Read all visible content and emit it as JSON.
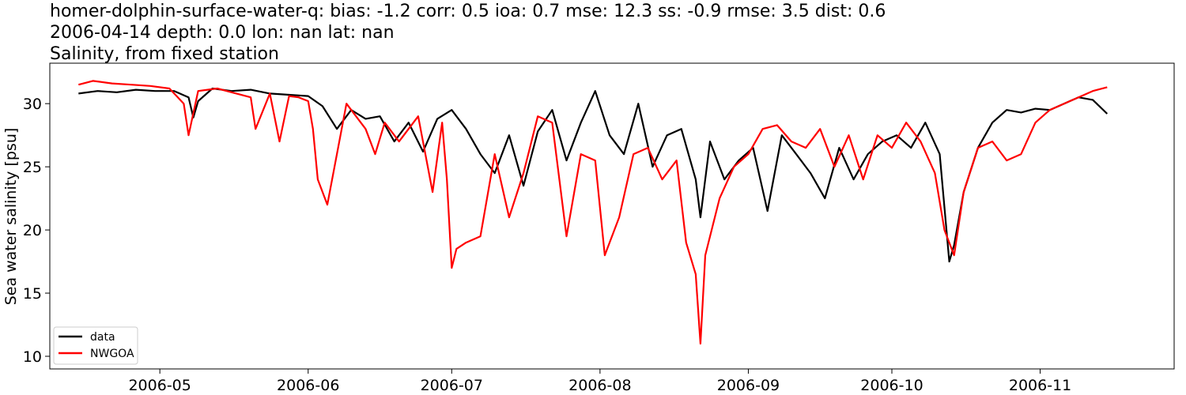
{
  "figure": {
    "title_lines": [
      "homer-dolphin-surface-water-q: bias: -1.2  corr: 0.5  ioa: 0.7  mse: 12.3  ss: -0.9  rmse: 3.5  dist: 0.6",
      "2006-04-14 depth: 0.0 lon: nan lat: nan",
      "Salinity, from fixed station"
    ]
  },
  "chart_data": {
    "type": "line",
    "title": "homer-dolphin-surface-water-q: bias: -1.2  corr: 0.5  ioa: 0.7  mse: 12.3  ss: -0.9  rmse: 3.5  dist: 0.6",
    "subtitle": "2006-04-14 depth: 0.0 lon: nan lat: nan / Salinity, from fixed station",
    "xlabel": "",
    "ylabel": "Sea water salinity [psu]",
    "x_is_date": true,
    "xlim": [
      "2006-04-08",
      "2006-11-29"
    ],
    "ylim": [
      9.0,
      33.2
    ],
    "xticks": [
      "2006-05",
      "2006-06",
      "2006-07",
      "2006-08",
      "2006-09",
      "2006-10",
      "2006-11"
    ],
    "xtick_dates": [
      "2006-05-01",
      "2006-06-01",
      "2006-07-01",
      "2006-08-01",
      "2006-09-01",
      "2006-10-01",
      "2006-11-01"
    ],
    "yticks": [
      10,
      15,
      20,
      25,
      30
    ],
    "grid": false,
    "legend_position": "lower-left",
    "series": [
      {
        "name": "data",
        "color": "#000000",
        "x": [
          "2006-04-14",
          "2006-04-18",
          "2006-04-22",
          "2006-04-26",
          "2006-04-30",
          "2006-05-04",
          "2006-05-07",
          "2006-05-08",
          "2006-05-09",
          "2006-05-12",
          "2006-05-16",
          "2006-05-20",
          "2006-05-24",
          "2006-05-28",
          "2006-06-01",
          "2006-06-04",
          "2006-06-07",
          "2006-06-10",
          "2006-06-13",
          "2006-06-16",
          "2006-06-19",
          "2006-06-22",
          "2006-06-25",
          "2006-06-28",
          "2006-07-01",
          "2006-07-04",
          "2006-07-07",
          "2006-07-10",
          "2006-07-13",
          "2006-07-16",
          "2006-07-19",
          "2006-07-22",
          "2006-07-25",
          "2006-07-28",
          "2006-07-31",
          "2006-08-03",
          "2006-08-06",
          "2006-08-09",
          "2006-08-12",
          "2006-08-15",
          "2006-08-18",
          "2006-08-21",
          "2006-08-22",
          "2006-08-24",
          "2006-08-27",
          "2006-08-30",
          "2006-09-02",
          "2006-09-05",
          "2006-09-08",
          "2006-09-11",
          "2006-09-14",
          "2006-09-17",
          "2006-09-20",
          "2006-09-23",
          "2006-09-26",
          "2006-09-29",
          "2006-10-02",
          "2006-10-05",
          "2006-10-08",
          "2006-10-11",
          "2006-10-13",
          "2006-10-14",
          "2006-10-16",
          "2006-10-19",
          "2006-10-22",
          "2006-10-25",
          "2006-10-28",
          "2006-10-31",
          "2006-11-03",
          "2006-11-06",
          "2006-11-09",
          "2006-11-12",
          "2006-11-15"
        ],
        "values": [
          30.8,
          31.0,
          30.9,
          31.1,
          31.0,
          31.0,
          30.5,
          28.9,
          30.2,
          31.2,
          31.0,
          31.1,
          30.8,
          30.7,
          30.6,
          29.8,
          28.0,
          29.5,
          28.8,
          29.0,
          27.0,
          28.5,
          26.2,
          28.8,
          29.5,
          28.0,
          26.0,
          24.5,
          27.5,
          23.5,
          27.8,
          29.5,
          25.5,
          28.5,
          31.0,
          27.5,
          26.0,
          30.0,
          25.0,
          27.5,
          28.0,
          24.0,
          21.0,
          27.0,
          24.0,
          25.5,
          26.5,
          21.5,
          27.5,
          26.0,
          24.5,
          22.5,
          26.5,
          24.0,
          26.0,
          27.0,
          27.5,
          26.5,
          28.5,
          26.0,
          17.5,
          18.8,
          23.0,
          26.5,
          28.5,
          29.5,
          29.3,
          29.6,
          29.5,
          30.0,
          30.5,
          30.3,
          29.2
        ]
      },
      {
        "name": "NWGOA",
        "color": "#ff0000",
        "x": [
          "2006-04-14",
          "2006-04-17",
          "2006-04-21",
          "2006-04-25",
          "2006-04-29",
          "2006-05-03",
          "2006-05-06",
          "2006-05-07",
          "2006-05-09",
          "2006-05-13",
          "2006-05-17",
          "2006-05-20",
          "2006-05-21",
          "2006-05-24",
          "2006-05-26",
          "2006-05-28",
          "2006-05-30",
          "2006-06-01",
          "2006-06-02",
          "2006-06-03",
          "2006-06-05",
          "2006-06-09",
          "2006-06-13",
          "2006-06-15",
          "2006-06-17",
          "2006-06-20",
          "2006-06-24",
          "2006-06-27",
          "2006-06-29",
          "2006-06-30",
          "2006-07-01",
          "2006-07-02",
          "2006-07-04",
          "2006-07-07",
          "2006-07-10",
          "2006-07-13",
          "2006-07-16",
          "2006-07-19",
          "2006-07-22",
          "2006-07-25",
          "2006-07-28",
          "2006-07-31",
          "2006-08-02",
          "2006-08-05",
          "2006-08-08",
          "2006-08-11",
          "2006-08-14",
          "2006-08-17",
          "2006-08-19",
          "2006-08-21",
          "2006-08-22",
          "2006-08-23",
          "2006-08-26",
          "2006-08-29",
          "2006-09-01",
          "2006-09-04",
          "2006-09-07",
          "2006-09-10",
          "2006-09-13",
          "2006-09-16",
          "2006-09-19",
          "2006-09-22",
          "2006-09-25",
          "2006-09-28",
          "2006-10-01",
          "2006-10-04",
          "2006-10-07",
          "2006-10-10",
          "2006-10-12",
          "2006-10-14",
          "2006-10-16",
          "2006-10-19",
          "2006-10-22",
          "2006-10-25",
          "2006-10-28",
          "2006-10-31",
          "2006-11-03",
          "2006-11-06",
          "2006-11-09",
          "2006-11-12",
          "2006-11-15"
        ],
        "values": [
          31.5,
          31.8,
          31.6,
          31.5,
          31.4,
          31.2,
          30.0,
          27.5,
          31.0,
          31.2,
          30.8,
          30.5,
          28.0,
          30.8,
          27.0,
          30.6,
          30.5,
          30.2,
          28.0,
          24.0,
          22.0,
          30.0,
          28.0,
          26.0,
          28.5,
          27.0,
          29.0,
          23.0,
          28.5,
          24.0,
          17.0,
          18.5,
          19.0,
          19.5,
          26.0,
          21.0,
          24.5,
          29.0,
          28.5,
          19.5,
          26.0,
          25.5,
          18.0,
          21.0,
          26.0,
          26.5,
          24.0,
          25.5,
          19.0,
          16.5,
          11.0,
          18.0,
          22.5,
          25.0,
          26.0,
          28.0,
          28.3,
          27.0,
          26.5,
          28.0,
          25.0,
          27.5,
          24.0,
          27.5,
          26.5,
          28.5,
          27.0,
          24.5,
          20.0,
          18.0,
          23.0,
          26.5,
          27.0,
          25.5,
          26.0,
          28.5,
          29.5,
          30.0,
          30.5,
          31.0,
          31.3
        ]
      }
    ]
  }
}
